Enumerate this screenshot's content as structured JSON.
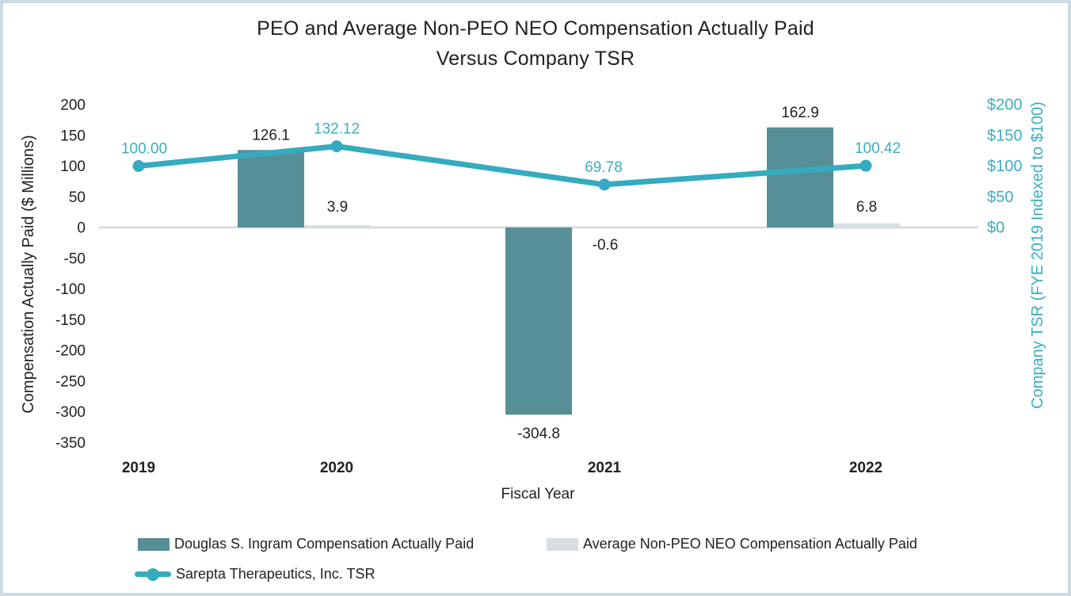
{
  "title": {
    "line1": "PEO and Average Non-PEO NEO Compensation Actually Paid",
    "line2": "Versus Company TSR"
  },
  "colors": {
    "peo_bar": "#578f96",
    "non_peo_bar": "#d8dfe2",
    "tsr_line": "#35abc0",
    "teal_text": "#3aaec2",
    "dark_text": "#212121",
    "gridline": "#d9dcde",
    "frame_border": "#ccdbe0"
  },
  "chart_data": {
    "type": "bar",
    "subtype": "bar-line-combo",
    "categories": [
      "2019",
      "2020",
      "2021",
      "2022"
    ],
    "series": [
      {
        "name": "Douglas S. Ingram Compensation Actually Paid",
        "type": "bar",
        "axis": "left",
        "values": [
          null,
          126.1,
          -304.8,
          162.9
        ],
        "labels": [
          "",
          "126.1",
          "-304.8",
          "162.9"
        ]
      },
      {
        "name": "Average Non-PEO NEO Compensation Actually Paid",
        "type": "bar",
        "axis": "left",
        "values": [
          null,
          3.9,
          -0.6,
          6.8
        ],
        "labels": [
          "",
          "3.9",
          "-0.6",
          "6.8"
        ]
      },
      {
        "name": "Sarepta Therapeutics, Inc. TSR",
        "type": "line",
        "axis": "right",
        "values": [
          100.0,
          132.12,
          69.78,
          100.42
        ],
        "labels": [
          "100.00",
          "132.12",
          "69.78",
          "100.42"
        ]
      }
    ],
    "left_axis": {
      "title": "Compensation Actually Paid ($ Millions)",
      "tick_labels": [
        "200",
        "150",
        "100",
        "50",
        "0",
        "-50",
        "-100",
        "-150",
        "-200",
        "-250",
        "-300",
        "-350"
      ],
      "tick_values": [
        200,
        150,
        100,
        50,
        0,
        -50,
        -100,
        -150,
        -200,
        -250,
        -300,
        -350
      ],
      "min": -350,
      "max": 200
    },
    "right_axis": {
      "title": "Company TSR (FYE 2019 Indexed to $100)",
      "tick_labels": [
        "$200",
        "$150",
        "$100",
        "$50",
        "$0"
      ],
      "tick_values": [
        200,
        150,
        100,
        50,
        0
      ],
      "min": 0,
      "max": 200
    },
    "x_axis": {
      "title": "Fiscal Year"
    },
    "grid": "zero-line-only",
    "legend_position": "bottom-left"
  }
}
